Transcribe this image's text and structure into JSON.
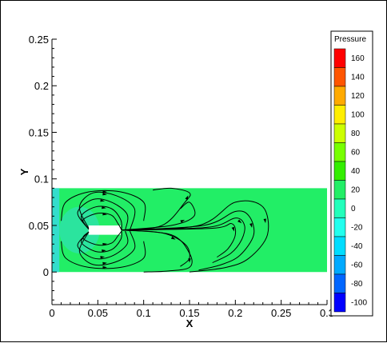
{
  "chart_data": {
    "type": "heatmap",
    "title": "",
    "xlabel": "X",
    "ylabel": "Y",
    "xlim": [
      0,
      0.3
    ],
    "ylim": [
      -0.035,
      0.25
    ],
    "x_ticks": [
      "0",
      "0.05",
      "0.1",
      "0.15",
      "0.2",
      "0.25",
      "0.3"
    ],
    "x_tick_values": [
      0,
      0.05,
      0.1,
      0.15,
      0.2,
      0.25,
      0.3
    ],
    "y_ticks": [
      "0",
      "0.05",
      "0.1",
      "0.15",
      "0.2",
      "0.25"
    ],
    "y_tick_values": [
      0,
      0.05,
      0.1,
      0.15,
      0.2,
      0.25
    ],
    "domain": {
      "x": [
        0,
        0.3
      ],
      "y": [
        0,
        0.09
      ]
    },
    "field_color": "#22ee66",
    "inlet_color": "#33ddcc",
    "obstacle": {
      "x": [
        0.04,
        0.075
      ],
      "y": [
        0.04,
        0.05
      ]
    },
    "legend": {
      "title": "Pressure",
      "levels": [
        "160",
        "140",
        "120",
        "100",
        "80",
        "60",
        "40",
        "20",
        "0",
        "-20",
        "-40",
        "-60",
        "-80",
        "-100"
      ],
      "colors": [
        "#ff0000",
        "#ff5500",
        "#ffaa00",
        "#ffee00",
        "#ccff00",
        "#77ff00",
        "#33ee00",
        "#22ee66",
        "#22ffbb",
        "#22ffee",
        "#00ddff",
        "#00aaff",
        "#0066ff",
        "#0000ff"
      ]
    },
    "streamlines": [
      [
        [
          0.04,
          0.047
        ],
        [
          0.03,
          0.07
        ],
        [
          0.045,
          0.085
        ],
        [
          0.07,
          0.082
        ],
        [
          0.09,
          0.068
        ],
        [
          0.085,
          0.045
        ]
      ],
      [
        [
          0.04,
          0.046
        ],
        [
          0.028,
          0.064
        ],
        [
          0.045,
          0.078
        ],
        [
          0.065,
          0.075
        ],
        [
          0.082,
          0.062
        ],
        [
          0.08,
          0.045
        ]
      ],
      [
        [
          0.04,
          0.046
        ],
        [
          0.032,
          0.06
        ],
        [
          0.048,
          0.07
        ],
        [
          0.065,
          0.068
        ],
        [
          0.075,
          0.056
        ],
        [
          0.076,
          0.045
        ]
      ],
      [
        [
          0.04,
          0.046
        ],
        [
          0.034,
          0.056
        ],
        [
          0.05,
          0.063
        ],
        [
          0.065,
          0.061
        ],
        [
          0.072,
          0.052
        ],
        [
          0.076,
          0.045
        ]
      ],
      [
        [
          0.04,
          0.043
        ],
        [
          0.03,
          0.022
        ],
        [
          0.045,
          0.008
        ],
        [
          0.07,
          0.011
        ],
        [
          0.09,
          0.025
        ],
        [
          0.085,
          0.044
        ]
      ],
      [
        [
          0.04,
          0.043
        ],
        [
          0.028,
          0.028
        ],
        [
          0.045,
          0.015
        ],
        [
          0.065,
          0.017
        ],
        [
          0.082,
          0.03
        ],
        [
          0.08,
          0.044
        ]
      ],
      [
        [
          0.04,
          0.043
        ],
        [
          0.032,
          0.032
        ],
        [
          0.048,
          0.022
        ],
        [
          0.065,
          0.024
        ],
        [
          0.075,
          0.035
        ],
        [
          0.076,
          0.044
        ]
      ],
      [
        [
          0.04,
          0.043
        ],
        [
          0.034,
          0.036
        ],
        [
          0.05,
          0.029
        ],
        [
          0.065,
          0.031
        ],
        [
          0.072,
          0.039
        ],
        [
          0.076,
          0.044
        ]
      ],
      [
        [
          0.01,
          0.055
        ],
        [
          0.015,
          0.075
        ],
        [
          0.04,
          0.086
        ],
        [
          0.075,
          0.086
        ],
        [
          0.1,
          0.075
        ],
        [
          0.1,
          0.055
        ]
      ],
      [
        [
          0.01,
          0.033
        ],
        [
          0.015,
          0.015
        ],
        [
          0.04,
          0.005
        ],
        [
          0.075,
          0.005
        ],
        [
          0.1,
          0.015
        ],
        [
          0.1,
          0.033
        ]
      ],
      [
        [
          0.076,
          0.045
        ],
        [
          0.12,
          0.05
        ],
        [
          0.145,
          0.075
        ],
        [
          0.15,
          0.085
        ],
        [
          0.13,
          0.09
        ],
        [
          0.11,
          0.088
        ]
      ],
      [
        [
          0.076,
          0.045
        ],
        [
          0.13,
          0.05
        ],
        [
          0.155,
          0.06
        ],
        [
          0.15,
          0.075
        ],
        [
          0.14,
          0.068
        ]
      ],
      [
        [
          0.076,
          0.045
        ],
        [
          0.13,
          0.04
        ],
        [
          0.15,
          0.02
        ],
        [
          0.15,
          0.005
        ],
        [
          0.125,
          0.001
        ],
        [
          0.1,
          0.0
        ]
      ],
      [
        [
          0.076,
          0.045
        ],
        [
          0.12,
          0.042
        ],
        [
          0.145,
          0.03
        ],
        [
          0.15,
          0.015
        ],
        [
          0.14,
          0.006
        ]
      ],
      [
        [
          0.076,
          0.045
        ],
        [
          0.16,
          0.05
        ],
        [
          0.2,
          0.075
        ],
        [
          0.23,
          0.07
        ],
        [
          0.235,
          0.04
        ],
        [
          0.215,
          0.015
        ],
        [
          0.19,
          0.005
        ],
        [
          0.15,
          0.0
        ]
      ],
      [
        [
          0.076,
          0.045
        ],
        [
          0.165,
          0.05
        ],
        [
          0.2,
          0.065
        ],
        [
          0.215,
          0.06
        ],
        [
          0.22,
          0.04
        ],
        [
          0.205,
          0.018
        ],
        [
          0.185,
          0.008
        ],
        [
          0.16,
          0.002
        ]
      ],
      [
        [
          0.076,
          0.045
        ],
        [
          0.17,
          0.048
        ],
        [
          0.2,
          0.058
        ],
        [
          0.21,
          0.05
        ],
        [
          0.207,
          0.035
        ],
        [
          0.195,
          0.02
        ],
        [
          0.175,
          0.01
        ]
      ],
      [
        [
          0.076,
          0.045
        ],
        [
          0.175,
          0.047
        ],
        [
          0.196,
          0.052
        ],
        [
          0.2,
          0.04
        ],
        [
          0.192,
          0.025
        ],
        [
          0.18,
          0.016
        ]
      ]
    ]
  }
}
